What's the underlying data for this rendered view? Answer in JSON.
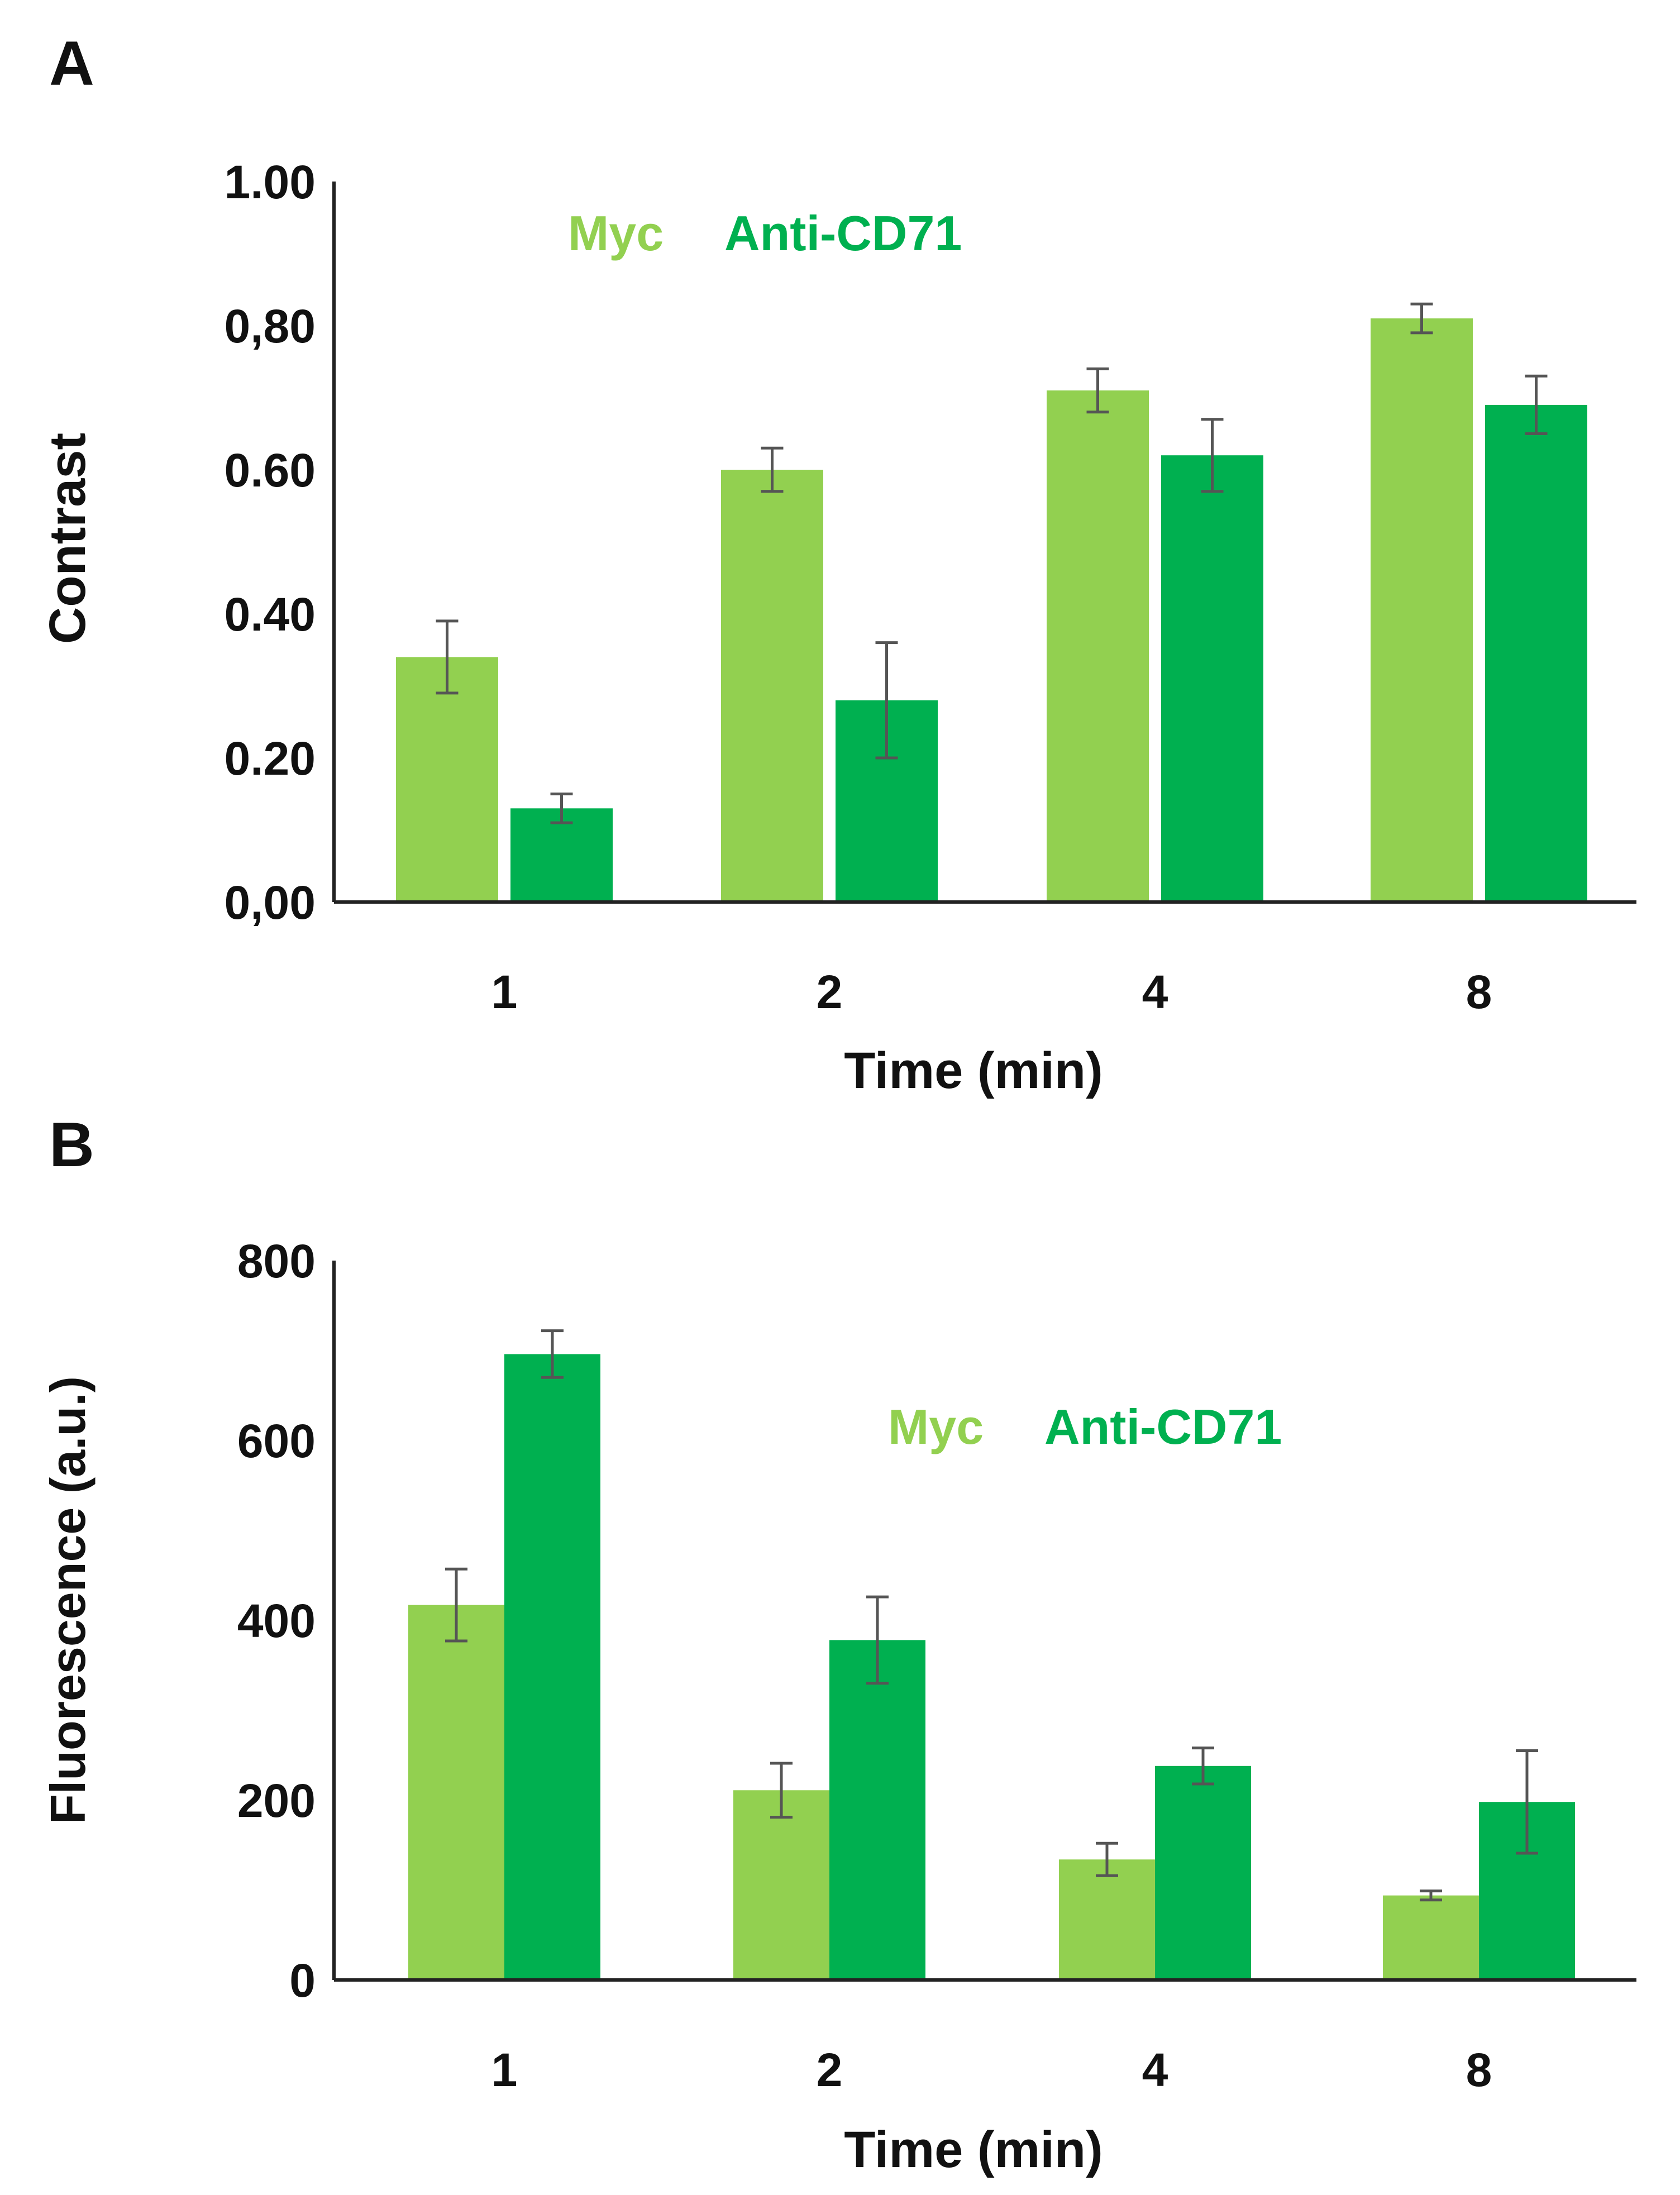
{
  "colors": {
    "myc": "#92d050",
    "anti_cd71": "#00b050",
    "axis": "#222222",
    "text": "#111111",
    "error_bar": "#555555"
  },
  "chart_data": [
    {
      "panel_label": "A",
      "type": "bar",
      "title": "",
      "xlabel": "Time (min)",
      "ylabel": "Contrast",
      "categories": [
        "1",
        "2",
        "4",
        "8"
      ],
      "ylim": [
        0,
        1
      ],
      "yticks": [
        0,
        0.2,
        0.4,
        0.6,
        0.8,
        1.0
      ],
      "ytick_labels": [
        "0,00",
        "0.20",
        "0.40",
        "0.60",
        "0,80",
        "1.00"
      ],
      "grid": false,
      "legend_position": "top-left",
      "series": [
        {
          "name": "Myc",
          "color_key": "myc",
          "values": [
            0.34,
            0.6,
            0.71,
            0.81
          ],
          "errors": [
            0.05,
            0.03,
            0.03,
            0.02
          ]
        },
        {
          "name": "Anti-CD71",
          "color_key": "anti_cd71",
          "values": [
            0.13,
            0.28,
            0.62,
            0.69
          ],
          "errors": [
            0.02,
            0.08,
            0.05,
            0.04
          ]
        }
      ]
    },
    {
      "panel_label": "B",
      "type": "bar",
      "title": "",
      "xlabel": "Time (min)",
      "ylabel": "Fluorescence (a.u.)",
      "categories": [
        "1",
        "2",
        "4",
        "8"
      ],
      "ylim": [
        0,
        800
      ],
      "yticks": [
        0,
        200,
        400,
        600,
        800
      ],
      "ytick_labels": [
        "0",
        "200",
        "400",
        "600",
        "800"
      ],
      "grid": false,
      "legend_position": "top-center",
      "series": [
        {
          "name": "Myc",
          "color_key": "myc",
          "values": [
            417,
            211,
            134,
            94
          ],
          "errors": [
            40,
            30,
            18,
            5
          ]
        },
        {
          "name": "Anti-CD71",
          "color_key": "anti_cd71",
          "values": [
            696,
            378,
            238,
            198
          ],
          "errors": [
            26,
            48,
            20,
            57
          ]
        }
      ]
    }
  ]
}
